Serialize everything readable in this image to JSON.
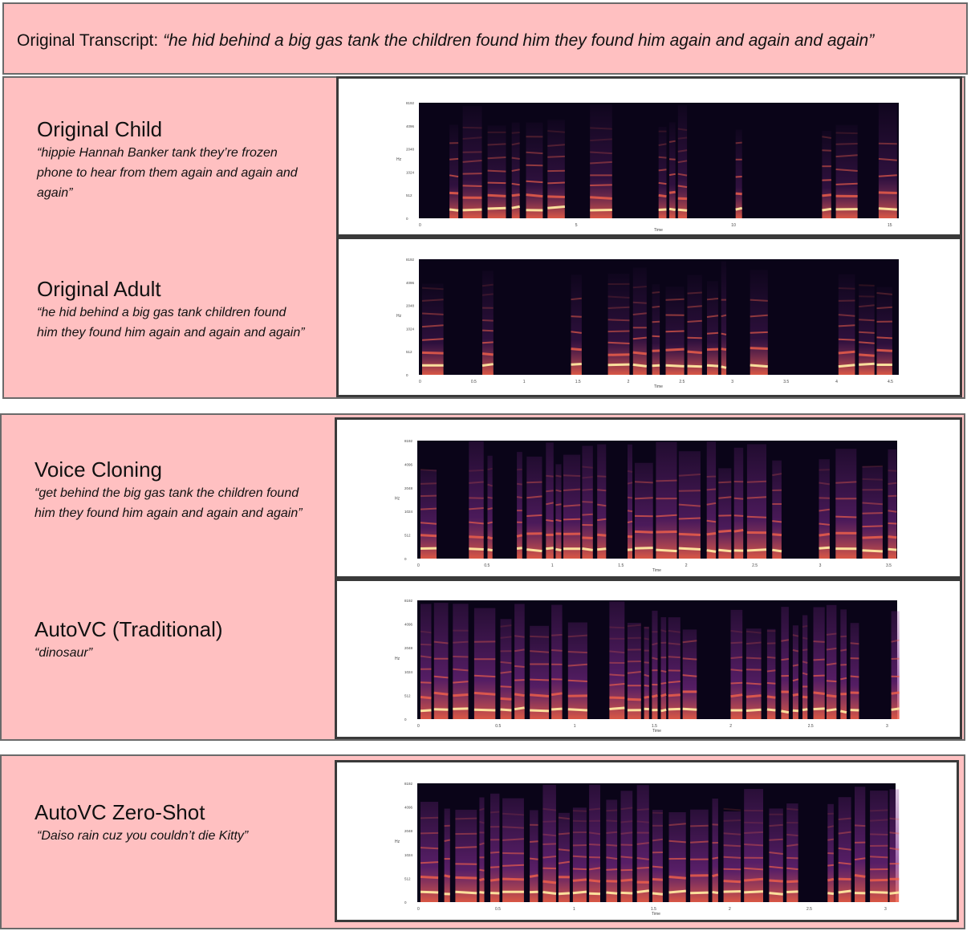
{
  "header": {
    "label": "Original Transcript:",
    "transcript": "“he hid behind a big gas tank the children found him they found him again and again and again”"
  },
  "groups": [
    {
      "rows": [
        {
          "title": "Original Child",
          "quote": "“hippie Hannah Banker tank they’re frozen phone to hear from them again and again and again”"
        },
        {
          "title": "Original Adult",
          "quote": "“he hid behind a big gas tank children found him they found him again and again and again”"
        }
      ]
    },
    {
      "rows": [
        {
          "title": "Voice Cloning",
          "quote": "“get behind the big gas tank the children found him they found him again and again and again”"
        },
        {
          "title": "AutoVC (Traditional)",
          "quote": "“dinosaur”"
        }
      ]
    },
    {
      "rows": [
        {
          "title": "AutoVC Zero-Shot",
          "quote": "“Daiso rain cuz you couldn’t die Kitty”"
        }
      ]
    }
  ],
  "spectrogram": {
    "colors": {
      "background": "#0a0418",
      "mid": "#7a2a8a",
      "bright": "#f0604a",
      "peak": "#ffe8a0"
    },
    "x_axis_label": "Time",
    "y_axis_label": "Hz"
  }
}
